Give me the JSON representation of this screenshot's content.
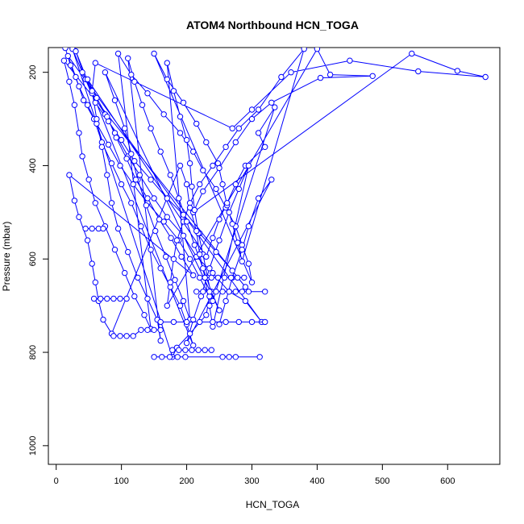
{
  "chart_data": {
    "type": "scatter",
    "title": "ATOM4 Northbound HCN_TOGA",
    "xlabel": "HCN_TOGA",
    "ylabel": "Pressure (mbar)",
    "xlim": [
      -12,
      680
    ],
    "ylim": [
      1040,
      147
    ],
    "y_reversed": true,
    "x_ticks": [
      0,
      100,
      200,
      300,
      400,
      500,
      600
    ],
    "y_ticks": [
      200,
      400,
      600,
      800,
      1000
    ],
    "marker": "open-circle",
    "line_connected": true,
    "color": "#0000FF",
    "grid": false,
    "series": [
      {
        "points": [
          [
            14,
            148
          ],
          [
            22,
            185
          ],
          [
            35,
            230
          ],
          [
            48,
            270
          ],
          [
            62,
            310
          ],
          [
            80,
            355
          ],
          [
            98,
            400
          ],
          [
            118,
            440
          ],
          [
            140,
            480
          ],
          [
            165,
            520
          ],
          [
            188,
            560
          ],
          [
            205,
            600
          ],
          [
            220,
            640
          ],
          [
            235,
            680
          ],
          [
            230,
            720
          ],
          [
            205,
            760
          ],
          [
            185,
            790
          ],
          [
            178,
            810
          ],
          [
            25,
            150
          ],
          [
            40,
            200
          ],
          [
            55,
            245
          ],
          [
            75,
            290
          ],
          [
            90,
            330
          ],
          [
            110,
            380
          ],
          [
            128,
            420
          ],
          [
            150,
            470
          ],
          [
            170,
            510
          ],
          [
            195,
            550
          ],
          [
            215,
            595
          ],
          [
            240,
            630
          ],
          [
            265,
            670
          ],
          [
            290,
            690
          ],
          [
            315,
            735
          ],
          [
            18,
            165
          ],
          [
            30,
            210
          ],
          [
            42,
            260
          ],
          [
            58,
            300
          ],
          [
            70,
            350
          ],
          [
            85,
            395
          ],
          [
            100,
            440
          ],
          [
            115,
            480
          ],
          [
            130,
            530
          ],
          [
            145,
            580
          ],
          [
            160,
            620
          ],
          [
            175,
            660
          ],
          [
            190,
            700
          ],
          [
            200,
            740
          ],
          [
            210,
            785
          ],
          [
            30,
            155
          ],
          [
            45,
            215
          ],
          [
            60,
            265
          ],
          [
            80,
            305
          ],
          [
            100,
            345
          ],
          [
            120,
            390
          ],
          [
            145,
            430
          ],
          [
            170,
            470
          ],
          [
            195,
            505
          ],
          [
            220,
            545
          ],
          [
            245,
            585
          ],
          [
            270,
            625
          ],
          [
            290,
            660
          ],
          [
            12,
            175
          ],
          [
            20,
            220
          ],
          [
            28,
            270
          ],
          [
            35,
            330
          ],
          [
            40,
            380
          ],
          [
            50,
            430
          ],
          [
            60,
            480
          ],
          [
            75,
            530
          ],
          [
            90,
            580
          ],
          [
            105,
            630
          ],
          [
            120,
            680
          ],
          [
            135,
            720
          ],
          [
            145,
            750
          ],
          [
            95,
            160
          ],
          [
            115,
            205
          ],
          [
            140,
            245
          ],
          [
            165,
            290
          ],
          [
            190,
            330
          ],
          [
            210,
            370
          ],
          [
            225,
            410
          ],
          [
            245,
            450
          ],
          [
            260,
            490
          ],
          [
            275,
            530
          ],
          [
            285,
            570
          ],
          [
            295,
            610
          ],
          [
            300,
            650
          ],
          [
            150,
            160
          ],
          [
            170,
            215
          ],
          [
            195,
            265
          ],
          [
            215,
            310
          ],
          [
            230,
            350
          ],
          [
            248,
            395
          ],
          [
            255,
            440
          ],
          [
            262,
            485
          ],
          [
            270,
            525
          ],
          [
            278,
            565
          ],
          [
            285,
            605
          ],
          [
            380,
            150
          ],
          [
            345,
            210
          ],
          [
            310,
            280
          ],
          [
            280,
            320
          ],
          [
            260,
            360
          ],
          [
            240,
            400
          ],
          [
            220,
            440
          ],
          [
            205,
            480
          ],
          [
            195,
            520
          ],
          [
            185,
            560
          ],
          [
            180,
            600
          ],
          [
            175,
            650
          ],
          [
            170,
            700
          ],
          [
            400,
            150
          ],
          [
            420,
            205
          ],
          [
            485,
            208
          ],
          [
            405,
            212
          ],
          [
            330,
            265
          ],
          [
            300,
            300
          ],
          [
            275,
            350
          ],
          [
            250,
            405
          ],
          [
            225,
            455
          ],
          [
            210,
            500
          ],
          [
            545,
            160
          ],
          [
            615,
            197
          ],
          [
            658,
            210
          ],
          [
            555,
            198
          ],
          [
            450,
            175
          ],
          [
            360,
            200
          ],
          [
            300,
            280
          ],
          [
            270,
            320
          ],
          [
            60,
            180
          ],
          [
            55,
            240
          ],
          [
            62,
            300
          ],
          [
            70,
            360
          ],
          [
            78,
            420
          ],
          [
            85,
            480
          ],
          [
            95,
            535
          ],
          [
            110,
            585
          ],
          [
            125,
            640
          ],
          [
            140,
            685
          ],
          [
            155,
            730
          ],
          [
            160,
            775
          ],
          [
            110,
            170
          ],
          [
            120,
            220
          ],
          [
            132,
            270
          ],
          [
            145,
            320
          ],
          [
            160,
            370
          ],
          [
            175,
            420
          ],
          [
            188,
            470
          ],
          [
            200,
            520
          ],
          [
            212,
            570
          ],
          [
            225,
            620
          ],
          [
            238,
            670
          ],
          [
            250,
            710
          ],
          [
            75,
            200
          ],
          [
            90,
            260
          ],
          [
            105,
            320
          ],
          [
            115,
            375
          ],
          [
            125,
            430
          ],
          [
            138,
            485
          ],
          [
            152,
            540
          ],
          [
            168,
            595
          ],
          [
            182,
            645
          ],
          [
            195,
            690
          ],
          [
            205,
            730
          ],
          [
            170,
            180
          ],
          [
            180,
            240
          ],
          [
            190,
            295
          ],
          [
            200,
            345
          ],
          [
            205,
            395
          ],
          [
            208,
            445
          ],
          [
            212,
            495
          ],
          [
            218,
            545
          ],
          [
            225,
            590
          ],
          [
            232,
            640
          ],
          [
            240,
            690
          ],
          [
            335,
            275
          ],
          [
            310,
            330
          ],
          [
            320,
            360
          ],
          [
            290,
            400
          ],
          [
            275,
            440
          ],
          [
            262,
            480
          ],
          [
            250,
            515
          ],
          [
            240,
            555
          ],
          [
            230,
            595
          ],
          [
            48,
            215
          ],
          [
            62,
            255
          ],
          [
            78,
            295
          ],
          [
            92,
            340
          ],
          [
            108,
            385
          ],
          [
            122,
            430
          ],
          [
            140,
            470
          ],
          [
            158,
            515
          ],
          [
            176,
            555
          ],
          [
            192,
            595
          ],
          [
            210,
            635
          ],
          [
            20,
            420
          ],
          [
            28,
            475
          ],
          [
            35,
            510
          ],
          [
            48,
            560
          ],
          [
            55,
            610
          ],
          [
            60,
            650
          ],
          [
            65,
            690
          ],
          [
            72,
            730
          ],
          [
            85,
            760
          ],
          [
            190,
            400
          ],
          [
            200,
            440
          ],
          [
            205,
            490
          ],
          [
            215,
            540
          ],
          [
            220,
            590
          ],
          [
            228,
            640
          ],
          [
            235,
            700
          ],
          [
            240,
            745
          ],
          [
            295,
            400
          ],
          [
            280,
            450
          ],
          [
            265,
            500
          ],
          [
            250,
            560
          ],
          [
            235,
            620
          ],
          [
            222,
            680
          ],
          [
            210,
            730
          ],
          [
            200,
            780
          ],
          [
            330,
            430
          ],
          [
            310,
            470
          ],
          [
            295,
            530
          ],
          [
            285,
            580
          ],
          [
            270,
            640
          ],
          [
            260,
            690
          ],
          [
            250,
            740
          ]
        ]
      },
      {
        "points": [
          [
            228,
            640
          ],
          [
            238,
            640
          ],
          [
            248,
            640
          ],
          [
            258,
            640
          ],
          [
            268,
            640
          ],
          [
            278,
            640
          ],
          [
            288,
            640
          ]
        ]
      },
      {
        "points": [
          [
            215,
            670
          ],
          [
            225,
            670
          ],
          [
            235,
            670
          ],
          [
            245,
            670
          ],
          [
            255,
            670
          ],
          [
            265,
            670
          ],
          [
            275,
            670
          ],
          [
            285,
            670
          ],
          [
            295,
            670
          ],
          [
            320,
            670
          ]
        ]
      },
      {
        "points": [
          [
            88,
            765
          ],
          [
            98,
            765
          ],
          [
            108,
            765
          ],
          [
            118,
            765
          ],
          [
            130,
            752
          ],
          [
            140,
            752
          ],
          [
            150,
            752
          ],
          [
            160,
            752
          ]
        ]
      },
      {
        "points": [
          [
            160,
            735
          ],
          [
            180,
            735
          ],
          [
            200,
            735
          ],
          [
            220,
            735
          ],
          [
            240,
            735
          ],
          [
            260,
            735
          ],
          [
            280,
            735
          ],
          [
            300,
            735
          ],
          [
            320,
            735
          ]
        ]
      },
      {
        "points": [
          [
            150,
            810
          ],
          [
            162,
            810
          ],
          [
            174,
            810
          ],
          [
            186,
            810
          ],
          [
            198,
            810
          ],
          [
            255,
            810
          ],
          [
            265,
            810
          ],
          [
            275,
            810
          ],
          [
            312,
            810
          ]
        ]
      },
      {
        "points": [
          [
            178,
            795
          ],
          [
            188,
            795
          ],
          [
            198,
            795
          ],
          [
            208,
            795
          ],
          [
            218,
            795
          ],
          [
            228,
            795
          ],
          [
            238,
            795
          ]
        ]
      },
      {
        "points": [
          [
            45,
            535
          ],
          [
            55,
            535
          ],
          [
            65,
            535
          ],
          [
            72,
            535
          ]
        ]
      },
      {
        "points": [
          [
            58,
            685
          ],
          [
            68,
            685
          ],
          [
            78,
            685
          ],
          [
            88,
            685
          ],
          [
            98,
            685
          ],
          [
            108,
            685
          ]
        ]
      }
    ]
  }
}
